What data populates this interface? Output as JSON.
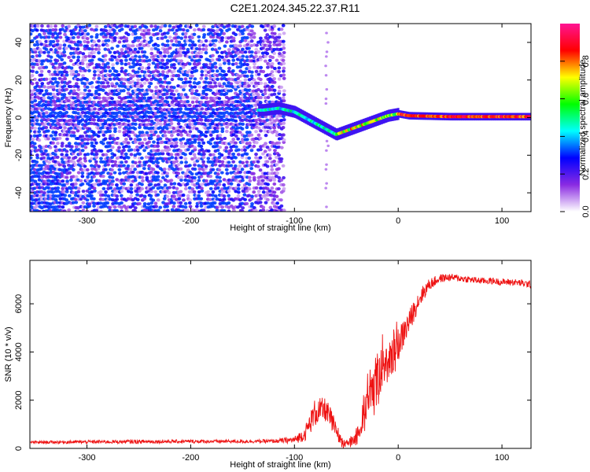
{
  "title": "C2E1.2024.345.22.37.R11",
  "chart_data": [
    {
      "type": "heatmap",
      "xlabel": "Height of straight line (km)",
      "ylabel": "Frequency (Hz)",
      "xlim": [
        -355,
        128
      ],
      "ylim": [
        -50,
        50
      ],
      "xticks": [
        -300,
        -200,
        -100,
        0,
        100
      ],
      "yticks": [
        -40,
        -20,
        0,
        20,
        40
      ],
      "colorbar": {
        "label": "Normalized spectral amplitude",
        "range": [
          0,
          1
        ],
        "ticks": [
          0.0,
          0.2,
          0.4,
          0.6,
          0.8
        ],
        "colors": [
          "#ffffff",
          "#8a2be2",
          "#0000ff",
          "#00ffff",
          "#00ff00",
          "#ffff00",
          "#ff0000",
          "#ff1493"
        ]
      },
      "ridge": {
        "x": [
          -130,
          -115,
          -100,
          -90,
          -80,
          -70,
          -60,
          -50,
          -40,
          -30,
          -20,
          -10,
          0,
          10,
          50,
          100,
          128
        ],
        "y": [
          4,
          5,
          3,
          0,
          -3,
          -6,
          -9,
          -7,
          -5,
          -3,
          -1,
          1,
          2,
          1,
          0.5,
          0.5,
          0.5
        ]
      },
      "noise_region_end_x": -110,
      "grid": false
    },
    {
      "type": "line",
      "xlabel": "Height of straight line (km)",
      "ylabel": "SNR (10 * v/v)",
      "xlim": [
        -355,
        128
      ],
      "ylim": [
        0,
        7800
      ],
      "xticks": [
        -300,
        -200,
        -100,
        0,
        100
      ],
      "yticks": [
        0,
        2000,
        4000,
        6000
      ],
      "series": [
        {
          "color": "#ee1111",
          "x": [
            -355,
            -300,
            -250,
            -200,
            -150,
            -120,
            -100,
            -90,
            -80,
            -70,
            -65,
            -60,
            -55,
            -50,
            -45,
            -40,
            -35,
            -30,
            -25,
            -20,
            -15,
            -10,
            -5,
            0,
            10,
            20,
            30,
            40,
            50,
            60,
            70,
            80,
            90,
            100,
            110,
            120,
            128
          ],
          "y": [
            250,
            270,
            280,
            290,
            290,
            300,
            350,
            600,
            1500,
            1600,
            1200,
            700,
            400,
            250,
            300,
            500,
            1300,
            2200,
            2700,
            3000,
            3300,
            3600,
            3900,
            4300,
            5200,
            6200,
            6800,
            7050,
            7100,
            7050,
            7000,
            6950,
            6950,
            6900,
            6900,
            6850,
            6800
          ],
          "noise_amplitude": [
            60,
            70,
            80,
            70,
            70,
            80,
            150,
            300,
            600,
            500,
            500,
            400,
            250,
            150,
            200,
            400,
            700,
            900,
            1000,
            1000,
            900,
            900,
            800,
            700,
            500,
            400,
            250,
            180,
            150,
            150,
            140,
            140,
            140,
            140,
            140,
            150,
            150
          ]
        }
      ],
      "grid": false
    }
  ]
}
